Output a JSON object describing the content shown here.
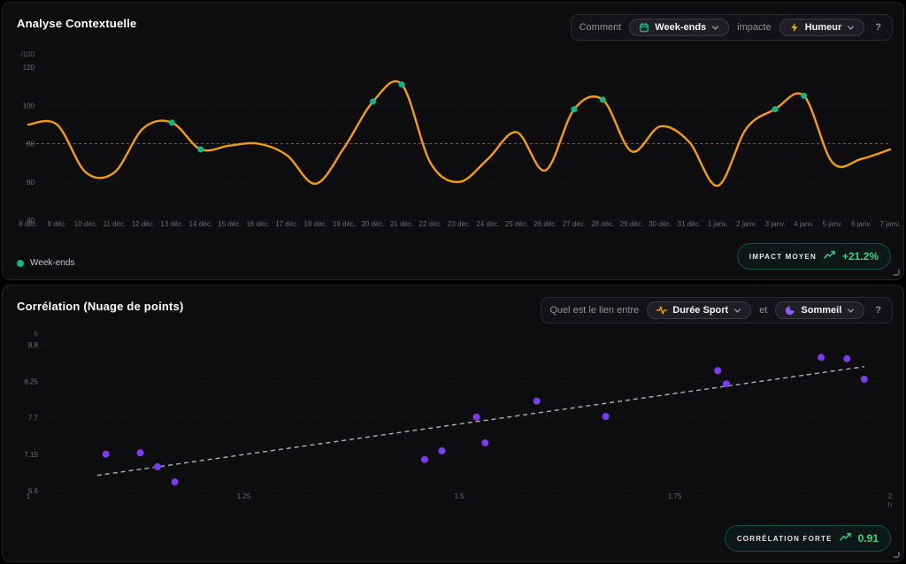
{
  "panels": {
    "contextual": {
      "title": "Analyse Contextuelle",
      "controls": {
        "prefix": "Comment",
        "selector1": "Week-ends",
        "middle": "impacte",
        "selector2": "Humeur",
        "help": "?"
      },
      "legend": "Week-ends",
      "badge": {
        "label": "IMPACT MOYEN",
        "value": "+21.2%"
      }
    },
    "correlation": {
      "title": "Corrélation (Nuage de points)",
      "controls": {
        "prefix": "Quel est le lien entre",
        "selector1": "Durée Sport",
        "middle": "et",
        "selector2": "Sommeil",
        "help": "?"
      },
      "badge": {
        "label": "CORRÉLATION FORTE",
        "value": "0.91"
      }
    }
  },
  "accents": {
    "line_orange": "#f59e0b",
    "weekend_green": "#10b981",
    "zap_yellow": "#eab308",
    "moon_purple": "#8b5cf6",
    "scatter_purple": "#7d3bf0",
    "badge_green": "#2fd780"
  },
  "chart_data": [
    {
      "type": "line",
      "title": "Analyse Contextuelle",
      "unit": "/100",
      "categories": [
        "8 déc.",
        "9 déc.",
        "10 déc.",
        "11 déc.",
        "12 déc.",
        "13 déc.",
        "14 déc.",
        "15 déc.",
        "16 déc.",
        "17 déc.",
        "18 déc.",
        "19 déc.",
        "20 déc.",
        "21 déc.",
        "22 déc.",
        "23 déc.",
        "24 déc.",
        "25 déc.",
        "26 déc.",
        "27 déc.",
        "28 déc.",
        "29 déc.",
        "30 déc.",
        "31 déc.",
        "1 janv.",
        "2 janv.",
        "3 janv.",
        "4 janv.",
        "5 janv.",
        "6 janv.",
        "7 janv."
      ],
      "values": [
        90,
        90,
        65,
        65,
        88,
        91,
        77,
        79,
        80,
        74,
        59,
        78,
        102,
        111,
        70,
        60,
        72,
        86,
        66,
        98,
        103,
        76,
        89,
        81,
        58,
        88,
        98,
        105,
        70,
        72,
        77
      ],
      "highlight_indices": [
        5,
        6,
        12,
        13,
        19,
        20,
        26,
        27
      ],
      "highlight_label": "Week-ends",
      "ylim": [
        40,
        120
      ],
      "yticks": [
        120,
        100,
        80,
        60,
        40
      ],
      "ref_line": 80,
      "grid": "dotted",
      "legend_position": "bottom-left"
    },
    {
      "type": "scatter",
      "title": "Corrélation (Nuage de points)",
      "xlabel_unit": "h",
      "ylabel_unit": "h",
      "xlim": [
        1,
        2
      ],
      "ylim": [
        6.6,
        8.8
      ],
      "xticks": [
        1,
        1.25,
        1.5,
        1.75,
        2
      ],
      "yticks": [
        8.8,
        8.25,
        7.7,
        7.15,
        6.6
      ],
      "points": [
        [
          1.09,
          7.15
        ],
        [
          1.13,
          7.17
        ],
        [
          1.15,
          6.96
        ],
        [
          1.17,
          6.73
        ],
        [
          1.46,
          7.07
        ],
        [
          1.48,
          7.2
        ],
        [
          1.52,
          7.71
        ],
        [
          1.53,
          7.32
        ],
        [
          1.59,
          7.95
        ],
        [
          1.67,
          7.72
        ],
        [
          1.8,
          8.41
        ],
        [
          1.81,
          8.21
        ],
        [
          1.92,
          8.61
        ],
        [
          1.95,
          8.59
        ],
        [
          1.97,
          8.28
        ]
      ],
      "trend": {
        "x1": 1.08,
        "y1": 6.83,
        "x2": 1.97,
        "y2": 8.47
      },
      "grid": "dotted"
    }
  ]
}
